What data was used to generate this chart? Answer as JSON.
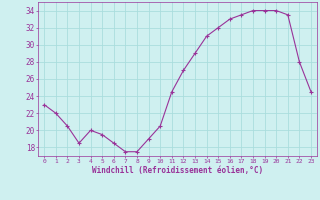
{
  "x": [
    0,
    1,
    2,
    3,
    4,
    5,
    6,
    7,
    8,
    9,
    10,
    11,
    12,
    13,
    14,
    15,
    16,
    17,
    18,
    19,
    20,
    21,
    22,
    23
  ],
  "y": [
    23,
    22,
    20.5,
    18.5,
    20,
    19.5,
    18.5,
    17.5,
    17.5,
    19,
    20.5,
    24.5,
    27,
    29,
    31,
    32,
    33,
    33.5,
    34,
    34,
    34,
    33.5,
    28,
    24.5
  ],
  "line_color": "#993399",
  "marker": "+",
  "bg_color": "#cff0f0",
  "grid_color": "#aadddd",
  "xlabel": "Windchill (Refroidissement éolien,°C)",
  "xlabel_color": "#993399",
  "tick_color": "#993399",
  "ylim": [
    17,
    35
  ],
  "yticks": [
    18,
    20,
    22,
    24,
    26,
    28,
    30,
    32,
    34
  ],
  "xticks": [
    0,
    1,
    2,
    3,
    4,
    5,
    6,
    7,
    8,
    9,
    10,
    11,
    12,
    13,
    14,
    15,
    16,
    17,
    18,
    19,
    20,
    21,
    22,
    23
  ]
}
